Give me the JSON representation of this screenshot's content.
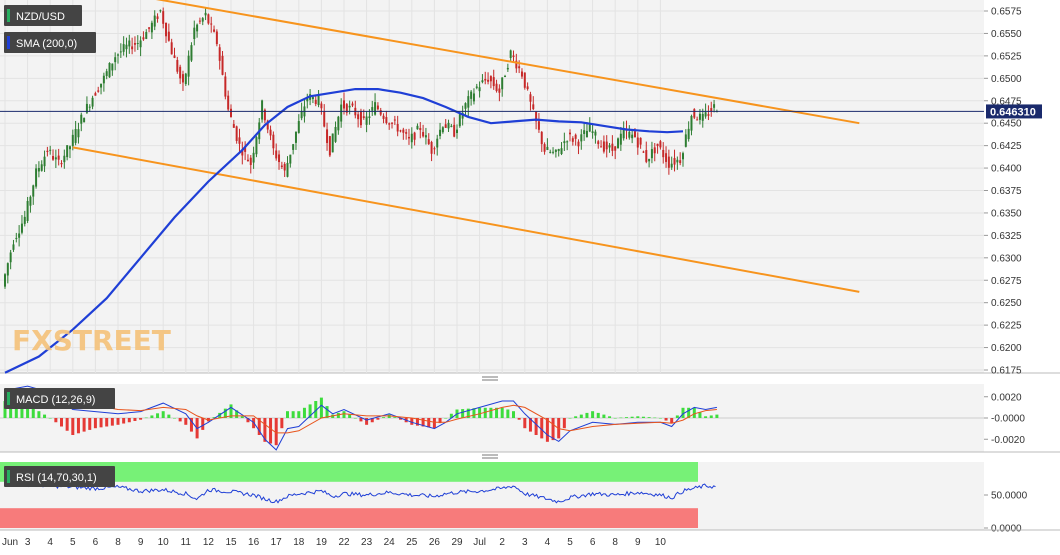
{
  "chart_data": [
    {
      "type": "candlestick",
      "symbol": "NZD/USD",
      "indicator": "SMA (200,0)",
      "current_price": "0.646310",
      "ylim": [
        0.6165,
        0.659
      ],
      "y_ticks": [
        "0.6575",
        "0.6550",
        "0.6525",
        "0.6500",
        "0.6475",
        "0.6450",
        "0.6425",
        "0.6400",
        "0.6375",
        "0.6350",
        "0.6325",
        "0.6300",
        "0.6275",
        "0.6250",
        "0.6225",
        "0.6200",
        "0.6175"
      ],
      "x_ticks": [
        "Jun",
        "3",
        "4",
        "5",
        "6",
        "8",
        "9",
        "10",
        "11",
        "12",
        "15",
        "16",
        "17",
        "18",
        "19",
        "22",
        "23",
        "24",
        "25",
        "26",
        "29",
        "Jul",
        "2",
        "3",
        "4",
        "5",
        "6",
        "8",
        "9",
        "10"
      ],
      "sma_200": [
        [
          0,
          0.6172
        ],
        [
          1.5,
          0.619
        ],
        [
          3,
          0.622
        ],
        [
          4.5,
          0.6255
        ],
        [
          6,
          0.63
        ],
        [
          7.5,
          0.6345
        ],
        [
          9,
          0.6385
        ],
        [
          10.5,
          0.642
        ],
        [
          11.5,
          0.6448
        ],
        [
          12.5,
          0.6468
        ],
        [
          13.5,
          0.648
        ],
        [
          14.5,
          0.6484
        ],
        [
          15.5,
          0.6488
        ],
        [
          16.5,
          0.6488
        ],
        [
          17.5,
          0.6484
        ],
        [
          18.5,
          0.6478
        ],
        [
          19.5,
          0.6468
        ],
        [
          20.5,
          0.6457
        ],
        [
          21.5,
          0.645
        ],
        [
          22.5,
          0.6452
        ],
        [
          23.5,
          0.6454
        ],
        [
          24.5,
          0.6452
        ],
        [
          25.5,
          0.6451
        ],
        [
          26.5,
          0.6447
        ],
        [
          27.5,
          0.6443
        ],
        [
          28.5,
          0.6441
        ],
        [
          29.3,
          0.644
        ],
        [
          30.0,
          0.6441
        ]
      ],
      "channel_upper": [
        [
          6.3,
          0.659
        ],
        [
          37.8,
          0.645
        ]
      ],
      "channel_lower": [
        [
          3,
          0.6423
        ],
        [
          37.8,
          0.6262
        ]
      ],
      "price_anchors": [
        [
          0,
          0.6268
        ],
        [
          0.5,
          0.632
        ],
        [
          1,
          0.6345
        ],
        [
          1.5,
          0.6395
        ],
        [
          2,
          0.642
        ],
        [
          2.5,
          0.6405
        ],
        [
          3,
          0.6425
        ],
        [
          3.5,
          0.6455
        ],
        [
          4,
          0.648
        ],
        [
          4.5,
          0.65
        ],
        [
          5,
          0.6525
        ],
        [
          5.5,
          0.6535
        ],
        [
          6,
          0.654
        ],
        [
          6.5,
          0.6555
        ],
        [
          7,
          0.6575
        ],
        [
          7.5,
          0.653
        ],
        [
          8,
          0.649
        ],
        [
          8.5,
          0.6555
        ],
        [
          9,
          0.657
        ],
        [
          9.5,
          0.654
        ],
        [
          10,
          0.6465
        ],
        [
          10.5,
          0.6425
        ],
        [
          11,
          0.6405
        ],
        [
          11.5,
          0.647
        ],
        [
          12,
          0.642
        ],
        [
          12.5,
          0.6395
        ],
        [
          13,
          0.644
        ],
        [
          13.5,
          0.648
        ],
        [
          14,
          0.6475
        ],
        [
          14.5,
          0.642
        ],
        [
          15,
          0.647
        ],
        [
          15.5,
          0.6465
        ],
        [
          16,
          0.645
        ],
        [
          16.5,
          0.647
        ],
        [
          17,
          0.6455
        ],
        [
          17.5,
          0.6445
        ],
        [
          18,
          0.643
        ],
        [
          18.5,
          0.6445
        ],
        [
          19,
          0.642
        ],
        [
          19.5,
          0.645
        ],
        [
          20,
          0.644
        ],
        [
          20.5,
          0.647
        ],
        [
          21,
          0.649
        ],
        [
          21.5,
          0.65
        ],
        [
          22,
          0.6485
        ],
        [
          22.5,
          0.6528
        ],
        [
          23,
          0.6505
        ],
        [
          23.5,
          0.646
        ],
        [
          24,
          0.642
        ],
        [
          24.5,
          0.6415
        ],
        [
          25,
          0.6435
        ],
        [
          25.5,
          0.643
        ],
        [
          26,
          0.6445
        ],
        [
          26.5,
          0.6425
        ],
        [
          27,
          0.642
        ],
        [
          27.5,
          0.644
        ],
        [
          28,
          0.6435
        ],
        [
          28.5,
          0.641
        ],
        [
          29,
          0.6425
        ],
        [
          29.5,
          0.6405
        ],
        [
          30,
          0.641
        ],
        [
          30.5,
          0.646
        ],
        [
          31,
          0.6455
        ],
        [
          31.5,
          0.6468
        ]
      ],
      "watermark": "FXSTREET"
    },
    {
      "type": "line",
      "indicator": "MACD (12,26,9)",
      "ylim": [
        -0.0032,
        0.0032
      ],
      "y_ticks": [
        "0.0020",
        "-0.0000",
        "-0.0020"
      ],
      "macd": [
        [
          0,
          0.0026
        ],
        [
          1,
          0.003
        ],
        [
          2,
          0.0024
        ],
        [
          3,
          0.0008
        ],
        [
          4,
          0.0006
        ],
        [
          5,
          0.0004
        ],
        [
          6,
          0.0006
        ],
        [
          7,
          0.0014
        ],
        [
          8,
          0.0004
        ],
        [
          8.5,
          -0.001
        ],
        [
          9,
          -0.0004
        ],
        [
          10,
          0.001
        ],
        [
          11,
          -0.0004
        ],
        [
          11.5,
          -0.002
        ],
        [
          12,
          -0.003
        ],
        [
          12.5,
          -0.001
        ],
        [
          13,
          -0.0008
        ],
        [
          14,
          0.0012
        ],
        [
          14.5,
          0.0004
        ],
        [
          15,
          0.0008
        ],
        [
          16,
          -0.0002
        ],
        [
          17,
          0.0004
        ],
        [
          18,
          -0.0004
        ],
        [
          19,
          -0.001
        ],
        [
          19.5,
          -0.0004
        ],
        [
          20,
          0.0004
        ],
        [
          21,
          0.001
        ],
        [
          22,
          0.0016
        ],
        [
          22.5,
          0.0016
        ],
        [
          23,
          0.0004
        ],
        [
          24,
          -0.0016
        ],
        [
          24.5,
          -0.0022
        ],
        [
          25,
          -0.0012
        ],
        [
          26,
          -0.0004
        ],
        [
          27,
          -0.0006
        ],
        [
          28,
          -0.0004
        ],
        [
          29,
          -0.0004
        ],
        [
          29.5,
          -0.0008
        ],
        [
          30,
          0.0004
        ],
        [
          30.5,
          0.001
        ],
        [
          31,
          0.0008
        ],
        [
          31.5,
          0.001
        ]
      ],
      "signal": [
        [
          0,
          0.0016
        ],
        [
          1,
          0.0022
        ],
        [
          2,
          0.0024
        ],
        [
          3,
          0.0018
        ],
        [
          4,
          0.0012
        ],
        [
          5,
          0.0008
        ],
        [
          6,
          0.0007
        ],
        [
          7,
          0.001
        ],
        [
          8,
          0.0008
        ],
        [
          8.5,
          0.0002
        ],
        [
          9,
          -0.0002
        ],
        [
          10,
          0.0002
        ],
        [
          11,
          0.0002
        ],
        [
          11.5,
          -0.0006
        ],
        [
          12,
          -0.0014
        ],
        [
          12.5,
          -0.0014
        ],
        [
          13,
          -0.0012
        ],
        [
          14,
          0.0
        ],
        [
          14.5,
          0.0002
        ],
        [
          15,
          0.0004
        ],
        [
          16,
          0.0002
        ],
        [
          17,
          0.0002
        ],
        [
          18,
          0.0
        ],
        [
          19,
          -0.0004
        ],
        [
          19.5,
          -0.0004
        ],
        [
          20,
          -0.0001
        ],
        [
          21,
          0.0004
        ],
        [
          22,
          0.001
        ],
        [
          22.5,
          0.0012
        ],
        [
          23,
          0.001
        ],
        [
          24,
          -0.0002
        ],
        [
          24.5,
          -0.001
        ],
        [
          25,
          -0.0012
        ],
        [
          26,
          -0.0008
        ],
        [
          27,
          -0.0006
        ],
        [
          28,
          -0.0005
        ],
        [
          29,
          -0.0004
        ],
        [
          29.5,
          -0.0005
        ],
        [
          30,
          -0.0002
        ],
        [
          30.5,
          0.0004
        ],
        [
          31,
          0.0007
        ],
        [
          31.5,
          0.0008
        ]
      ]
    },
    {
      "type": "line",
      "indicator": "RSI (14,70,30,1)",
      "ylim": [
        0,
        100
      ],
      "y_ticks": [
        "50.0000",
        "0.0000"
      ],
      "overbought": 70,
      "oversold": 30,
      "rsi": [
        [
          0,
          68
        ],
        [
          1,
          66
        ],
        [
          2,
          64
        ],
        [
          3,
          62
        ],
        [
          4,
          60
        ],
        [
          5,
          62
        ],
        [
          6,
          56
        ],
        [
          7,
          58
        ],
        [
          8,
          52
        ],
        [
          8.5,
          44
        ],
        [
          9,
          58
        ],
        [
          10,
          55
        ],
        [
          11,
          50
        ],
        [
          11.5,
          44
        ],
        [
          12,
          40
        ],
        [
          12.5,
          48
        ],
        [
          13,
          52
        ],
        [
          14,
          56
        ],
        [
          14.5,
          48
        ],
        [
          15,
          52
        ],
        [
          16,
          50
        ],
        [
          17,
          54
        ],
        [
          18,
          50
        ],
        [
          19,
          48
        ],
        [
          19.5,
          52
        ],
        [
          20,
          54
        ],
        [
          21,
          56
        ],
        [
          22,
          60
        ],
        [
          22.5,
          64
        ],
        [
          23,
          52
        ],
        [
          24,
          44
        ],
        [
          24.5,
          40
        ],
        [
          25,
          46
        ],
        [
          26,
          52
        ],
        [
          27,
          50
        ],
        [
          28,
          54
        ],
        [
          29,
          50
        ],
        [
          29.5,
          46
        ],
        [
          30,
          56
        ],
        [
          30.5,
          60
        ],
        [
          31,
          64
        ],
        [
          31.5,
          62
        ]
      ]
    }
  ]
}
